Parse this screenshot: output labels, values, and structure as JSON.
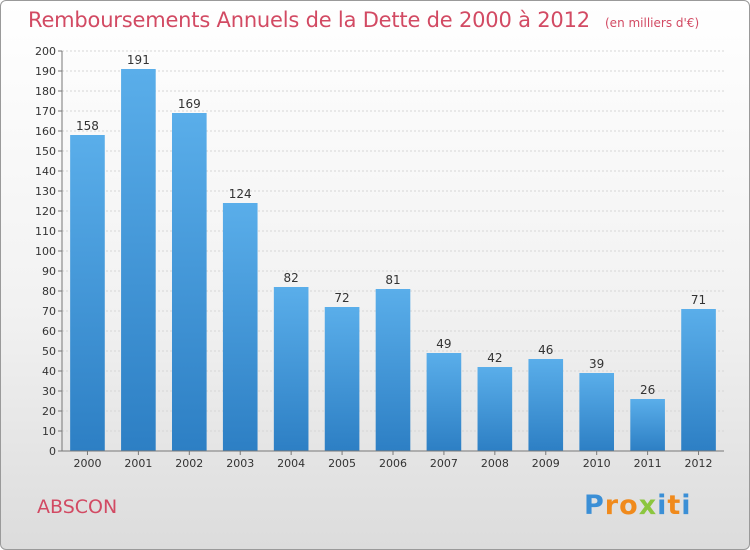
{
  "chart_data": {
    "type": "bar",
    "title": "Remboursements Annuels de la Dette de 2000 à 2012",
    "unit": "(en milliers d'€)",
    "categories": [
      "2000",
      "2001",
      "2002",
      "2003",
      "2004",
      "2005",
      "2006",
      "2007",
      "2008",
      "2009",
      "2010",
      "2011",
      "2012"
    ],
    "values": [
      158,
      191,
      169,
      124,
      82,
      72,
      81,
      49,
      42,
      46,
      39,
      26,
      71
    ],
    "ylim": [
      0,
      200
    ],
    "yticks": [
      0,
      10,
      20,
      30,
      40,
      50,
      60,
      70,
      80,
      90,
      100,
      110,
      120,
      130,
      140,
      150,
      160,
      170,
      180,
      190,
      200
    ],
    "grid": true,
    "bar_color": "#4a9fe0"
  },
  "commune": "ABSCON",
  "logo": {
    "text": "Proxiti",
    "letters": [
      {
        "char": "P",
        "color": "#3b8fd6"
      },
      {
        "char": "r",
        "color": "#f08a1c"
      },
      {
        "char": "o",
        "color": "#f08a1c"
      },
      {
        "char": "x",
        "color": "#8cc63f"
      },
      {
        "char": "i",
        "color": "#3b8fd6"
      },
      {
        "char": "t",
        "color": "#f08a1c"
      },
      {
        "char": "i",
        "color": "#3b8fd6"
      }
    ]
  }
}
